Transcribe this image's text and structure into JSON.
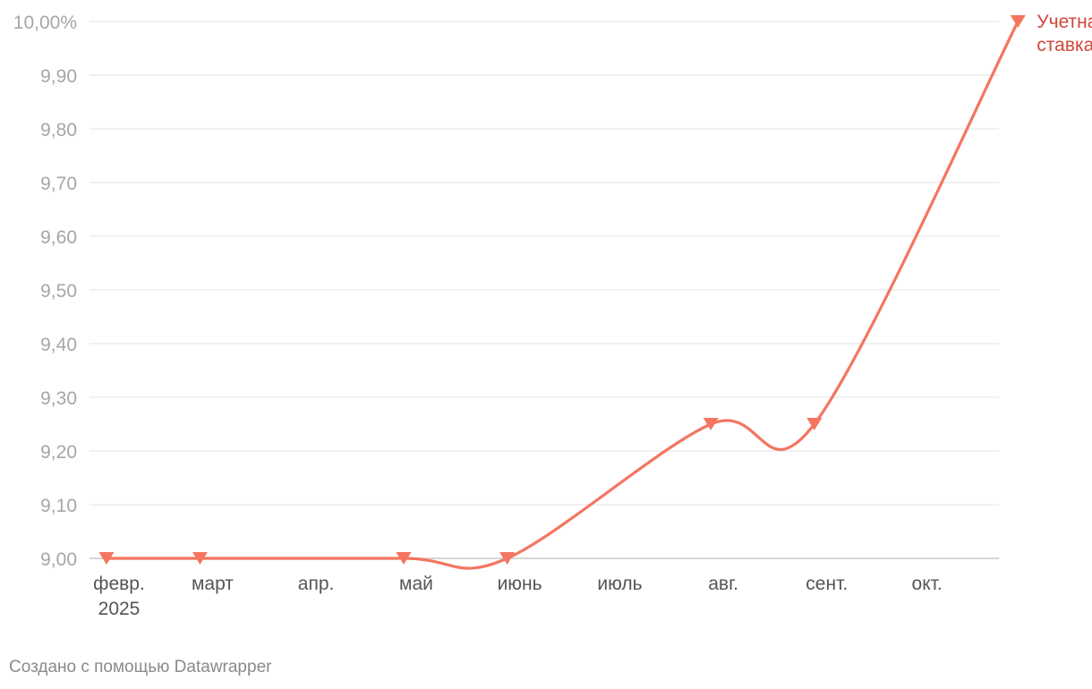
{
  "chart_data": {
    "type": "line",
    "title": "",
    "xlabel": "",
    "ylabel": "",
    "ylim": [
      9.0,
      10.0
    ],
    "y_ticks": [
      "9,00",
      "9,10",
      "9,20",
      "9,30",
      "9,40",
      "9,50",
      "9,60",
      "9,70",
      "9,80",
      "9,90",
      "10,00%"
    ],
    "x_ticks": [
      {
        "month": "2025-02",
        "label": [
          "февр.",
          "2025"
        ]
      },
      {
        "month": "2025-03",
        "label": [
          "март"
        ]
      },
      {
        "month": "2025-04",
        "label": [
          "апр."
        ]
      },
      {
        "month": "2025-05",
        "label": [
          "май"
        ]
      },
      {
        "month": "2025-06",
        "label": [
          "июнь"
        ]
      },
      {
        "month": "2025-07",
        "label": [
          "июль"
        ]
      },
      {
        "month": "2025-08",
        "label": [
          "авг."
        ]
      },
      {
        "month": "2025-09",
        "label": [
          "сент."
        ]
      },
      {
        "month": "2025-10",
        "label": [
          "окт."
        ]
      }
    ],
    "grid": true,
    "series": [
      {
        "name": "Учетная ставка",
        "name_lines": [
          "Учетная",
          "ставка"
        ],
        "color": "#f47560",
        "label_color": "#d0463b",
        "marker": "triangle-down",
        "points": [
          {
            "date": "2025-02-01",
            "value": 9.0
          },
          {
            "date": "2025-03-01",
            "value": 9.0
          },
          {
            "date": "2025-05-01",
            "value": 9.0
          },
          {
            "date": "2025-06-01",
            "value": 9.0
          },
          {
            "date": "2025-08-01",
            "value": 9.25
          },
          {
            "date": "2025-09-01",
            "value": 9.25
          },
          {
            "date": "2025-11-01",
            "value": 10.0
          }
        ]
      }
    ]
  },
  "footer": {
    "credit": "Создано с помощью Datawrapper"
  }
}
